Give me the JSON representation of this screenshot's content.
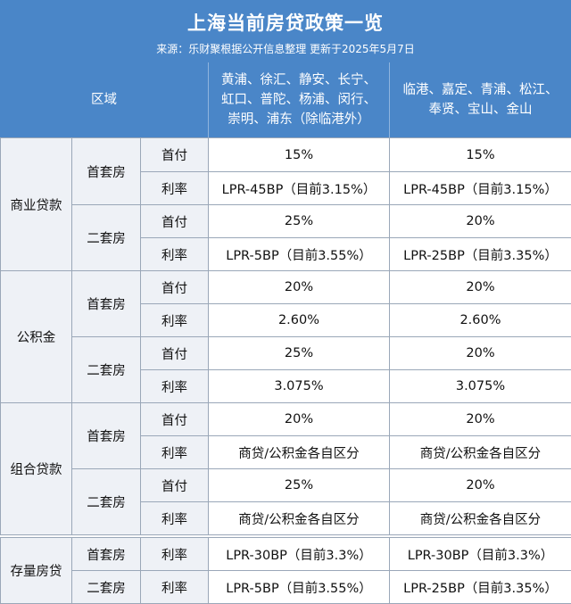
{
  "header": {
    "title": "上海当前房贷政策一览",
    "source": "来源：乐财聚根据公开信息整理 更新于2025年5月7日",
    "region_label": "区域",
    "columns": [
      [
        "黄浦、徐汇、静安、长宁、",
        "虹口、普陀、杨浦、闵行、",
        "崇明、浦东（除临港外）"
      ],
      [
        "临港、嘉定、青浦、松江、",
        "奉贤、宝山、金山"
      ]
    ]
  },
  "sections": [
    {
      "category": "商业贷款",
      "groups": [
        {
          "name": "首套房",
          "rows": [
            {
              "label": "首付",
              "a": "15%",
              "b": "15%"
            },
            {
              "label": "利率",
              "a": "LPR-45BP（目前3.15%）",
              "b": "LPR-45BP（目前3.15%）"
            }
          ]
        },
        {
          "name": "二套房",
          "rows": [
            {
              "label": "首付",
              "a": "25%",
              "b": "20%"
            },
            {
              "label": "利率",
              "a": "LPR-5BP（目前3.55%）",
              "b": "LPR-25BP（目前3.35%）"
            }
          ]
        }
      ]
    },
    {
      "category": "公积金",
      "groups": [
        {
          "name": "首套房",
          "rows": [
            {
              "label": "首付",
              "a": "20%",
              "b": "20%"
            },
            {
              "label": "利率",
              "a": "2.60%",
              "b": "2.60%"
            }
          ]
        },
        {
          "name": "二套房",
          "rows": [
            {
              "label": "首付",
              "a": "25%",
              "b": "20%"
            },
            {
              "label": "利率",
              "a": "3.075%",
              "b": "3.075%"
            }
          ]
        }
      ]
    },
    {
      "category": "组合贷款",
      "groups": [
        {
          "name": "首套房",
          "rows": [
            {
              "label": "首付",
              "a": "20%",
              "b": "20%"
            },
            {
              "label": "利率",
              "a": "商贷/公积金各自区分",
              "b": "商贷/公积金各自区分"
            }
          ]
        },
        {
          "name": "二套房",
          "rows": [
            {
              "label": "首付",
              "a": "25%",
              "b": "20%"
            },
            {
              "label": "利率",
              "a": "商贷/公积金各自区分",
              "b": "商贷/公积金各自区分"
            }
          ]
        }
      ]
    },
    {
      "category": "存量房贷",
      "groups": [
        {
          "name": "首套房",
          "rows": [
            {
              "label": "利率",
              "a": "LPR-30BP（目前3.3%）",
              "b": "LPR-30BP（目前3.3%）"
            }
          ]
        },
        {
          "name": "二套房",
          "rows": [
            {
              "label": "利率",
              "a": "LPR-5BP（目前3.55%）",
              "b": "LPR-25BP（目前3.35%）"
            }
          ]
        }
      ]
    }
  ]
}
